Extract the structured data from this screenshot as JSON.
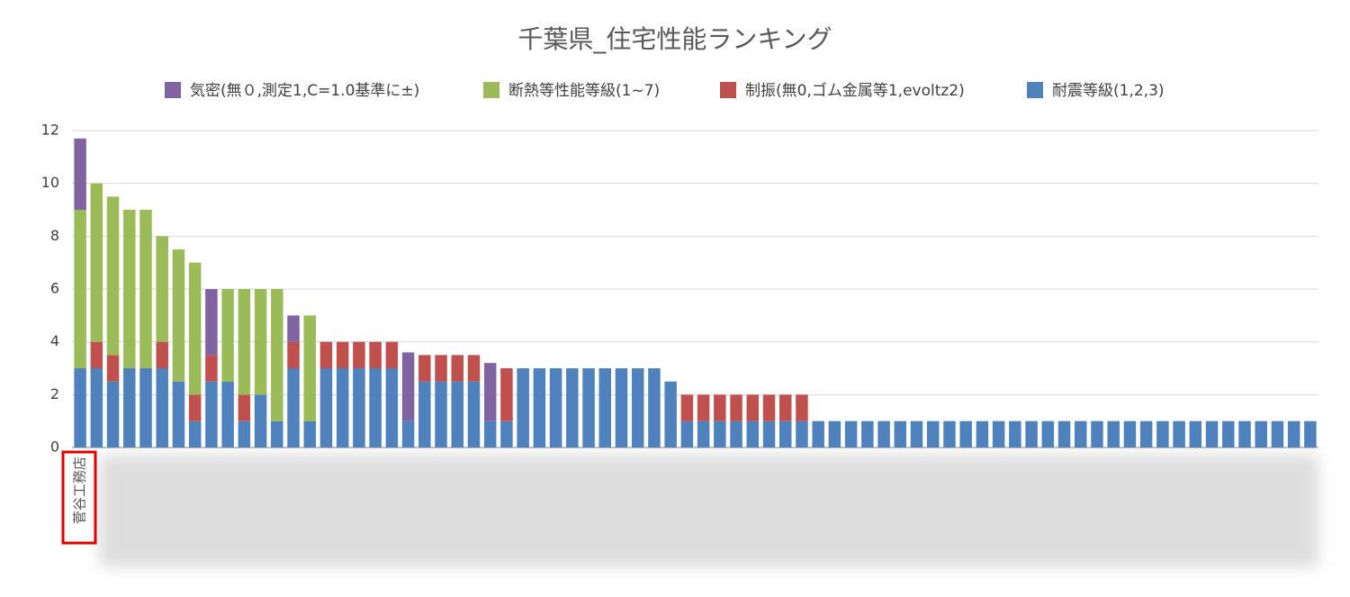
{
  "chart_data": {
    "type": "stacked_bar",
    "title": "千葉県_住宅性能ランキング",
    "categories": [
      "菅谷工務店",
      null,
      null,
      null,
      null,
      null,
      null,
      null,
      null,
      null,
      null,
      null,
      null,
      null,
      null,
      null,
      null,
      null,
      null,
      null,
      null,
      null,
      null,
      null,
      null,
      null,
      null,
      null,
      null,
      null,
      null,
      null,
      null,
      null,
      null,
      null,
      null,
      null,
      null,
      null,
      null,
      null,
      null,
      null,
      null,
      null,
      null,
      null,
      null,
      null,
      null,
      null,
      null,
      null,
      null,
      null,
      null,
      null,
      null,
      null,
      null,
      null,
      null,
      null,
      null,
      null,
      null,
      null,
      null,
      null,
      null,
      null,
      null,
      null,
      null,
      null
    ],
    "series": [
      {
        "name": "気密(無０,測定1,C=1.0基準に±)",
        "color": "#8064a2",
        "values": [
          2.7,
          0,
          0,
          0,
          0,
          0,
          0,
          0,
          2.5,
          0,
          0,
          0,
          0,
          1,
          0,
          0,
          0,
          0,
          0,
          0,
          2.6,
          0,
          0,
          0,
          0,
          2.2,
          0,
          0,
          0,
          0,
          0,
          0,
          0,
          0,
          0,
          0,
          0,
          0,
          0,
          0,
          0,
          0,
          0,
          0,
          0,
          0,
          0,
          0,
          0,
          0,
          0,
          0,
          0,
          0,
          0,
          0,
          0,
          0,
          0,
          0,
          0,
          0,
          0,
          0,
          0,
          0,
          0,
          0,
          0,
          0,
          0,
          0,
          0,
          0,
          0,
          0
        ]
      },
      {
        "name": "断熱等性能等級(1~7)",
        "color": "#9bbb59",
        "values": [
          6,
          6,
          6,
          6,
          6,
          4,
          5,
          5,
          0,
          3.5,
          4,
          4,
          5,
          0,
          4,
          0,
          0,
          0,
          0,
          0,
          0,
          0,
          0,
          0,
          0,
          0,
          0,
          0,
          0,
          0,
          0,
          0,
          0,
          0,
          0,
          0,
          0,
          0,
          0,
          0,
          0,
          0,
          0,
          0,
          0,
          0,
          0,
          0,
          0,
          0,
          0,
          0,
          0,
          0,
          0,
          0,
          0,
          0,
          0,
          0,
          0,
          0,
          0,
          0,
          0,
          0,
          0,
          0,
          0,
          0,
          0,
          0,
          0,
          0,
          0,
          0
        ]
      },
      {
        "name": "制振(無0,ゴム金属等1,evoltz2)",
        "color": "#c0504d",
        "values": [
          0,
          1,
          1,
          0,
          0,
          1,
          0,
          1,
          1,
          0,
          1,
          0,
          0,
          1,
          0,
          1,
          1,
          1,
          1,
          1,
          0,
          1,
          1,
          1,
          1,
          0,
          2,
          0,
          0,
          0,
          0,
          0,
          0,
          0,
          0,
          0,
          0,
          1,
          1,
          1,
          1,
          1,
          1,
          1,
          1,
          0,
          0,
          0,
          0,
          0,
          0,
          0,
          0,
          0,
          0,
          0,
          0,
          0,
          0,
          0,
          0,
          0,
          0,
          0,
          0,
          0,
          0,
          0,
          0,
          0,
          0,
          0,
          0,
          0,
          0,
          0
        ]
      },
      {
        "name": "耐震等級(1,2,3)",
        "color": "#4f81bd",
        "values": [
          3,
          3,
          2.5,
          3,
          3,
          3,
          2.5,
          1,
          2.5,
          2.5,
          1,
          2,
          1,
          3,
          1,
          3,
          3,
          3,
          3,
          3,
          1,
          2.5,
          2.5,
          2.5,
          2.5,
          1,
          1,
          3,
          3,
          3,
          3,
          3,
          3,
          3,
          3,
          3,
          2.5,
          1,
          1,
          1,
          1,
          1,
          1,
          1,
          1,
          1,
          1,
          1,
          1,
          1,
          1,
          1,
          1,
          1,
          1,
          1,
          1,
          1,
          1,
          1,
          1,
          1,
          1,
          1,
          1,
          1,
          1,
          1,
          1,
          1,
          1,
          1,
          1,
          1,
          1,
          1
        ]
      }
    ],
    "ylim": [
      0,
      12
    ],
    "yticks": [
      0,
      2,
      4,
      6,
      8,
      10,
      12
    ],
    "grid": true,
    "legend": "top"
  }
}
